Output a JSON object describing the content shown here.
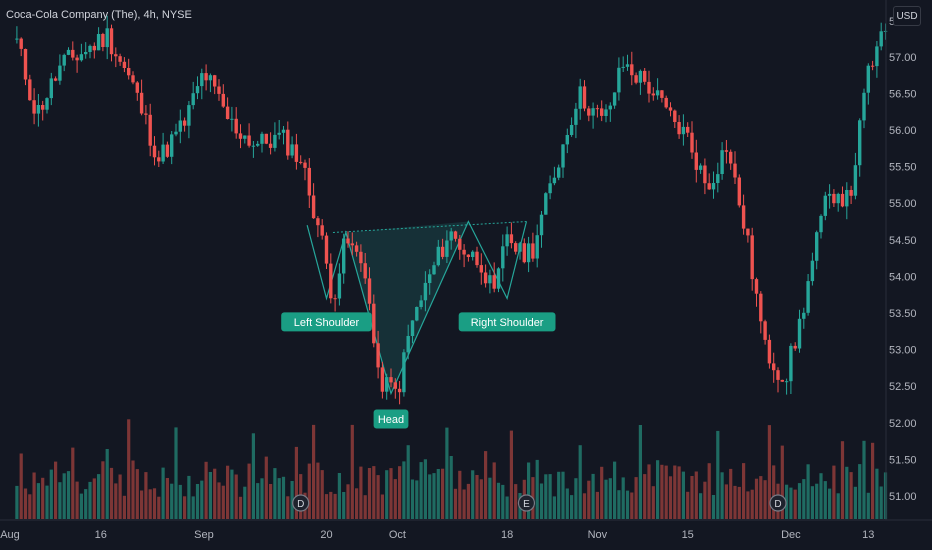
{
  "header": {
    "title": "Coca-Cola Company (The), 4h, NYSE",
    "currency": "USD"
  },
  "colors": {
    "background": "#131722",
    "up": "#26a69a",
    "down": "#ef5350",
    "volume_up": "#1f6b62",
    "volume_down": "#7d3636",
    "pattern_fill": "#26a69a",
    "label_bg": "#1a9e84",
    "axis_text": "#b2b5be"
  },
  "chart_data": {
    "type": "candlestick",
    "title": "Coca-Cola Company (The), 4h, NYSE",
    "xlabel": "",
    "ylabel": "",
    "ylim": [
      50.75,
      57.75
    ],
    "y_ticks": [
      "51.00",
      "51.50",
      "52.00",
      "52.50",
      "53.00",
      "53.50",
      "54.00",
      "54.50",
      "55.00",
      "55.50",
      "56.00",
      "56.50",
      "57.00"
    ],
    "y_top_partial_label": "5",
    "x_ticks": [
      "Aug",
      "16",
      "Sep",
      "20",
      "Oct",
      "18",
      "Nov",
      "15",
      "Dec",
      "13"
    ],
    "grid": false,
    "legend": "none",
    "price_path": [
      {
        "date": "Aug 3",
        "close": 57.2
      },
      {
        "date": "Aug 6",
        "close": 56.2
      },
      {
        "date": "Aug 10",
        "close": 56.9
      },
      {
        "date": "Aug 14",
        "close": 57.1
      },
      {
        "date": "Aug 17",
        "close": 57.3
      },
      {
        "date": "Aug 21",
        "close": 56.6
      },
      {
        "date": "Aug 25",
        "close": 55.6
      },
      {
        "date": "Aug 29",
        "close": 56.1
      },
      {
        "date": "Sep 1",
        "close": 56.8
      },
      {
        "date": "Sep 5",
        "close": 56.1
      },
      {
        "date": "Sep 9",
        "close": 55.8
      },
      {
        "date": "Sep 13",
        "close": 55.9
      },
      {
        "date": "Sep 16",
        "close": 55.6
      },
      {
        "date": "Sep 19",
        "close": 54.6
      },
      {
        "date": "Sep 21",
        "close": 53.7
      },
      {
        "date": "Sep 23",
        "close": 54.5
      },
      {
        "date": "Sep 26",
        "close": 54.1
      },
      {
        "date": "Sep 28",
        "close": 52.6
      },
      {
        "date": "Oct 1",
        "close": 52.4
      },
      {
        "date": "Oct 3",
        "close": 53.3
      },
      {
        "date": "Oct 6",
        "close": 54.0
      },
      {
        "date": "Oct 9",
        "close": 54.6
      },
      {
        "date": "Oct 12",
        "close": 54.3
      },
      {
        "date": "Oct 14",
        "close": 54.2
      },
      {
        "date": "Oct 16",
        "close": 53.7
      },
      {
        "date": "Oct 18",
        "close": 54.6
      },
      {
        "date": "Oct 20",
        "close": 54.3
      },
      {
        "date": "Oct 22",
        "close": 54.4
      },
      {
        "date": "Oct 26",
        "close": 55.6
      },
      {
        "date": "Oct 29",
        "close": 56.5
      },
      {
        "date": "Nov 2",
        "close": 56.1
      },
      {
        "date": "Nov 5",
        "close": 56.9
      },
      {
        "date": "Nov 9",
        "close": 56.6
      },
      {
        "date": "Nov 12",
        "close": 56.2
      },
      {
        "date": "Nov 15",
        "close": 55.9
      },
      {
        "date": "Nov 18",
        "close": 55.2
      },
      {
        "date": "Nov 21",
        "close": 55.8
      },
      {
        "date": "Nov 24",
        "close": 54.6
      },
      {
        "date": "Nov 27",
        "close": 53.0
      },
      {
        "date": "Nov 30",
        "close": 52.6
      },
      {
        "date": "Dec 2",
        "close": 53.2
      },
      {
        "date": "Dec 6",
        "close": 54.9
      },
      {
        "date": "Dec 8",
        "close": 55.2
      },
      {
        "date": "Dec 10",
        "close": 55.0
      },
      {
        "date": "Dec 13",
        "close": 56.8
      },
      {
        "date": "Dec 16",
        "close": 57.4
      }
    ],
    "pattern": {
      "name": "Inverse Head and Shoulders",
      "points": [
        {
          "label": "Left Shoulder",
          "date": "Sep 20",
          "price": 53.7
        },
        {
          "label": "Head",
          "date": "Sep 30",
          "price": 52.4
        },
        {
          "label": "Right Shoulder",
          "date": "Oct 18",
          "price": 53.7
        }
      ],
      "neckline": {
        "start_price": 54.6,
        "end_price": 54.75
      }
    },
    "events": [
      {
        "label": "D",
        "date": "Sep 16"
      },
      {
        "label": "E",
        "date": "Oct 21"
      },
      {
        "label": "D",
        "date": "Nov 29"
      }
    ]
  }
}
